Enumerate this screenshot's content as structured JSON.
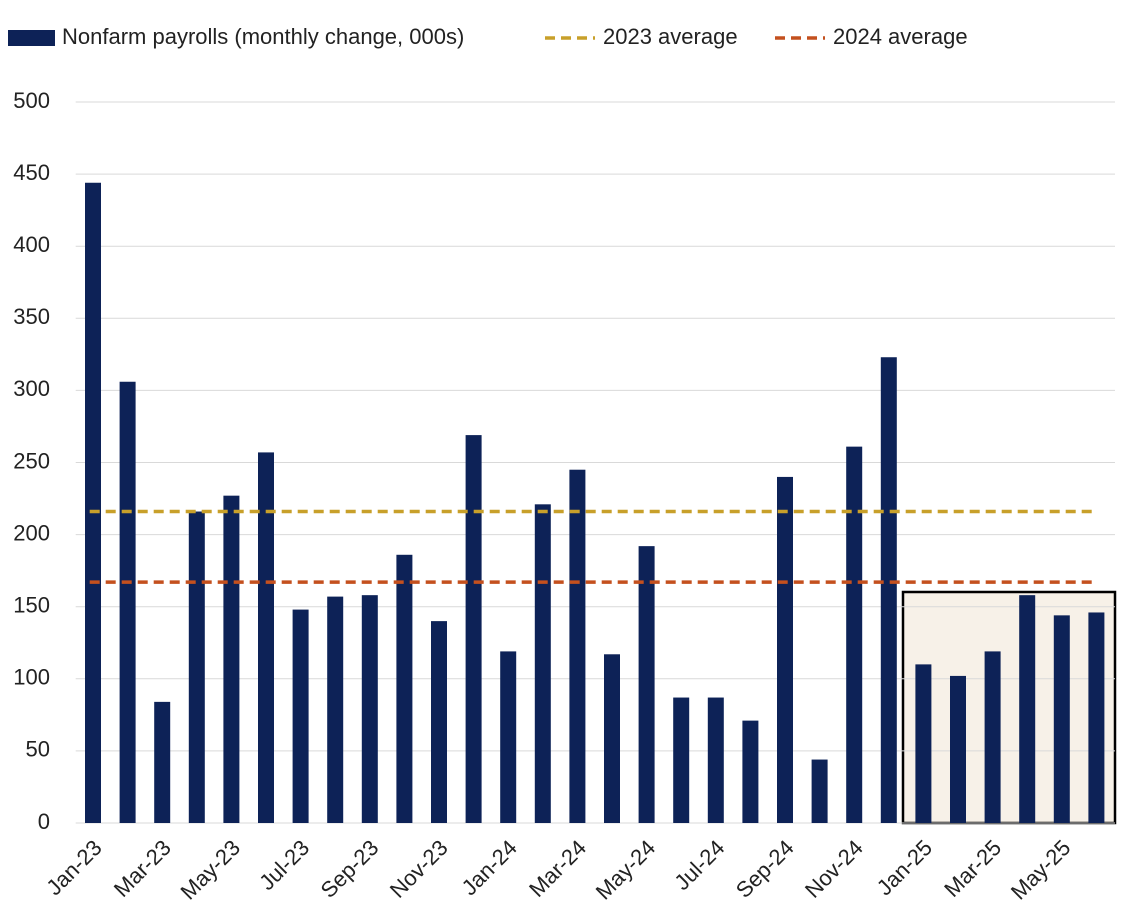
{
  "chart_data": {
    "type": "bar",
    "categories": [
      "Jan-23",
      null,
      "Mar-23",
      null,
      "May-23",
      null,
      "Jul-23",
      null,
      "Sep-23",
      null,
      "Nov-23",
      null,
      "Jan-24",
      null,
      "Mar-24",
      null,
      "May-24",
      null,
      "Jul-24",
      null,
      "Sep-24",
      null,
      "Nov-24",
      null,
      "Jan-25",
      null,
      "Mar-25",
      null,
      "May-25",
      null
    ],
    "series": [
      {
        "name": "Nonfarm payrolls (monthly change, 000s)",
        "color": "#0d2257",
        "values": [
          444,
          306,
          84,
          216,
          227,
          257,
          148,
          157,
          158,
          186,
          140,
          269,
          119,
          221,
          245,
          117,
          192,
          87,
          87,
          71,
          240,
          44,
          261,
          323,
          110,
          102,
          119,
          158,
          144,
          146
        ]
      },
      {
        "name": "2023 average",
        "color": "#c8a02a",
        "value": 216
      },
      {
        "name": "2024 average",
        "color": "#c4501e",
        "value": 167
      }
    ],
    "ylim": [
      0,
      500
    ],
    "yticks": [
      0,
      50,
      100,
      150,
      200,
      250,
      300,
      350,
      400,
      450,
      500
    ],
    "grid": true,
    "legend": "top"
  }
}
